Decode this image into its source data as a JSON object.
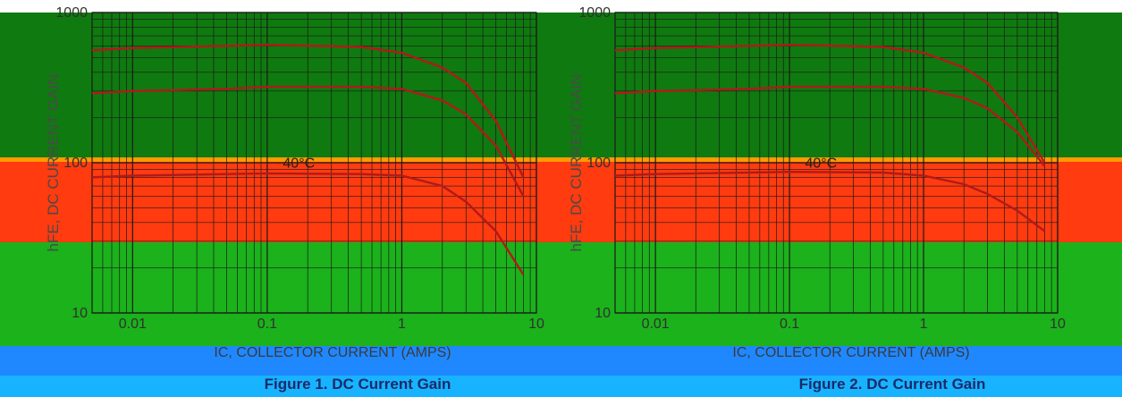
{
  "chart_data": [
    {
      "type": "line",
      "caption": "Figure 1. DC Current Gain",
      "xlabel": "IC, COLLECTOR CURRENT (AMPS)",
      "ylabel": "hFE, DC CURRENT GAIN",
      "xscale": "log",
      "yscale": "log",
      "xlim": [
        0.005,
        10
      ],
      "ylim": [
        10,
        1000
      ],
      "x_ticks": [
        "0.01",
        "0.1",
        "1",
        "10"
      ],
      "y_ticks": [
        "1000",
        "100",
        "10"
      ],
      "grid": true,
      "annotations": [
        "−40°C"
      ],
      "series": [
        {
          "x": [
            0.005,
            0.01,
            0.05,
            0.1,
            0.5,
            1,
            2,
            3,
            5,
            8
          ],
          "values": [
            560,
            580,
            600,
            610,
            590,
            540,
            430,
            340,
            190,
            80
          ]
        },
        {
          "x": [
            0.005,
            0.01,
            0.05,
            0.1,
            0.5,
            1,
            2,
            3,
            5,
            8
          ],
          "values": [
            290,
            300,
            310,
            320,
            320,
            310,
            260,
            210,
            130,
            60
          ]
        },
        {
          "x": [
            0.005,
            0.01,
            0.05,
            0.1,
            0.5,
            1,
            2,
            3,
            5,
            8
          ],
          "values": [
            80,
            82,
            84,
            85,
            84,
            82,
            70,
            55,
            35,
            18
          ]
        }
      ]
    },
    {
      "type": "line",
      "caption": "Figure 2. DC Current Gain",
      "xlabel": "IC, COLLECTOR CURRENT (AMPS)",
      "ylabel": "hFE, DC CURRENT GAIN",
      "xscale": "log",
      "yscale": "log",
      "xlim": [
        0.005,
        10
      ],
      "ylim": [
        10,
        1000
      ],
      "x_ticks": [
        "0.01",
        "0.1",
        "1",
        "10"
      ],
      "y_ticks": [
        "1000",
        "100",
        "10"
      ],
      "grid": true,
      "annotations": [
        "−40°C"
      ],
      "series": [
        {
          "x": [
            0.005,
            0.01,
            0.05,
            0.1,
            0.5,
            1,
            2,
            3,
            5,
            8
          ],
          "values": [
            560,
            580,
            600,
            610,
            590,
            540,
            430,
            340,
            200,
            100
          ]
        },
        {
          "x": [
            0.005,
            0.01,
            0.05,
            0.1,
            0.5,
            1,
            2,
            3,
            5,
            8
          ],
          "values": [
            290,
            300,
            310,
            320,
            320,
            310,
            270,
            230,
            160,
            95
          ]
        },
        {
          "x": [
            0.005,
            0.01,
            0.05,
            0.1,
            0.5,
            1,
            2,
            3,
            5,
            8
          ],
          "values": [
            82,
            84,
            86,
            87,
            86,
            82,
            72,
            62,
            48,
            35
          ]
        }
      ]
    }
  ],
  "overlay_colors": {
    "dark_green": "#0f7a0f",
    "red": "#ff3b0f",
    "green": "#1bb21b",
    "blue": "#1f88ff",
    "cyan": "#17b3ff",
    "orange": "#ff9a00",
    "curve": "#b11a1a",
    "grid": "#1a1a1a"
  }
}
